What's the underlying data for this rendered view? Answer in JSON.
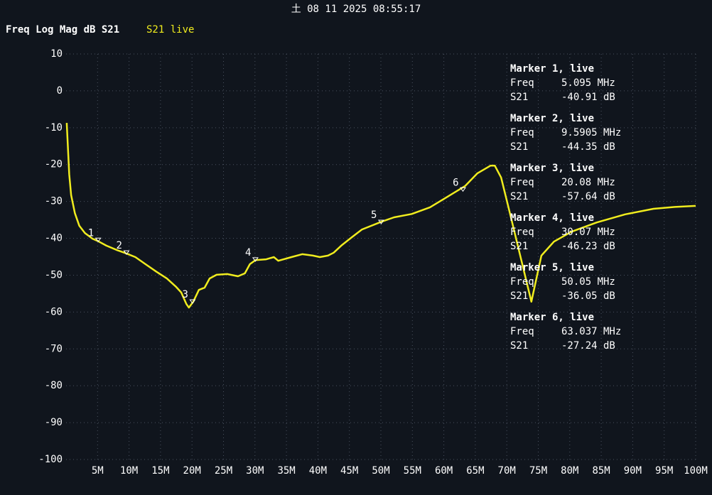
{
  "chart_data": {
    "type": "line",
    "timestamp": "土 08 11 2025 08:55:17",
    "title": "Freq Log Mag dB S21",
    "x": [
      0.1,
      0.5,
      0.8,
      1.4,
      2.1,
      3.0,
      4.2,
      5.0,
      6.4,
      8.1,
      9.4,
      11.0,
      12.6,
      14.3,
      16.0,
      17.5,
      18.3,
      19.1,
      19.5,
      20.2,
      21.1,
      22.0,
      22.8,
      23.9,
      25.6,
      27.3,
      28.4,
      29.2,
      30.1,
      31.8,
      33.0,
      33.7,
      35.8,
      37.5,
      39.2,
      40.3,
      41.6,
      42.5,
      43.7,
      45.4,
      47.0,
      50.1,
      52.1,
      54.9,
      57.8,
      60.6,
      63.4,
      65.3,
      67.4,
      68.1,
      69.1,
      70.5,
      72.4,
      73.9,
      75.5,
      77.5,
      80.3,
      84.3,
      88.8,
      93.3,
      96.7,
      100.0
    ],
    "series": [
      {
        "name": "S21 live",
        "color": "#f0ec1e",
        "values": [
          -8.7,
          -22.6,
          -28.3,
          -33.2,
          -36.6,
          -38.6,
          -40.1,
          -40.7,
          -42.0,
          -43.2,
          -44.0,
          -45.1,
          -47.0,
          -49.0,
          -50.9,
          -53.2,
          -54.7,
          -57.8,
          -58.8,
          -57.2,
          -54.0,
          -53.4,
          -50.9,
          -49.9,
          -49.7,
          -50.3,
          -49.5,
          -47.0,
          -45.9,
          -45.7,
          -45.1,
          -46.1,
          -45.1,
          -44.3,
          -44.7,
          -45.1,
          -44.7,
          -43.9,
          -42.0,
          -39.7,
          -37.6,
          -35.5,
          -34.3,
          -33.4,
          -31.6,
          -28.7,
          -25.8,
          -22.4,
          -20.3,
          -20.3,
          -23.5,
          -33.2,
          -46.6,
          -57.2,
          -44.7,
          -40.9,
          -38.2,
          -35.7,
          -33.5,
          -32.0,
          -31.5,
          -31.2
        ]
      }
    ],
    "xlim": [
      0,
      100
    ],
    "xticks": [
      {
        "value": 5,
        "label": "5M"
      },
      {
        "value": 10,
        "label": "10M"
      },
      {
        "value": 15,
        "label": "15M"
      },
      {
        "value": 20,
        "label": "20M"
      },
      {
        "value": 25,
        "label": "25M"
      },
      {
        "value": 30,
        "label": "30M"
      },
      {
        "value": 35,
        "label": "35M"
      },
      {
        "value": 40,
        "label": "40M"
      },
      {
        "value": 45,
        "label": "45M"
      },
      {
        "value": 50,
        "label": "50M"
      },
      {
        "value": 55,
        "label": "55M"
      },
      {
        "value": 60,
        "label": "60M"
      },
      {
        "value": 65,
        "label": "65M"
      },
      {
        "value": 70,
        "label": "70M"
      },
      {
        "value": 75,
        "label": "75M"
      },
      {
        "value": 80,
        "label": "80M"
      },
      {
        "value": 85,
        "label": "85M"
      },
      {
        "value": 90,
        "label": "90M"
      },
      {
        "value": 95,
        "label": "95M"
      },
      {
        "value": 100,
        "label": "100M"
      }
    ],
    "ylim": [
      -100,
      10
    ],
    "yticks": [
      -100,
      -90,
      -80,
      -70,
      -60,
      -50,
      -40,
      -30,
      -20,
      -10,
      0,
      10
    ],
    "grid": true,
    "markers": [
      {
        "number": "1",
        "title": "Marker 1, live",
        "freq_label": "Freq",
        "freq": "5.095 MHz",
        "s21_label": "S21",
        "s21": "-40.91 dB",
        "x": 5.095,
        "y": -40.91
      },
      {
        "number": "2",
        "title": "Marker 2, live",
        "freq_label": "Freq",
        "freq": "9.5905 MHz",
        "s21_label": "S21",
        "s21": "-44.35 dB",
        "x": 9.5905,
        "y": -44.35
      },
      {
        "number": "3",
        "title": "Marker 3, live",
        "freq_label": "Freq",
        "freq": "20.08 MHz",
        "s21_label": "S21",
        "s21": "-57.64 dB",
        "x": 20.08,
        "y": -57.64
      },
      {
        "number": "4",
        "title": "Marker 4, live",
        "freq_label": "Freq",
        "freq": "30.07 MHz",
        "s21_label": "S21",
        "s21": "-46.23 dB",
        "x": 30.07,
        "y": -46.23
      },
      {
        "number": "5",
        "title": "Marker 5, live",
        "freq_label": "Freq",
        "freq": "50.05 MHz",
        "s21_label": "S21",
        "s21": "-36.05 dB",
        "x": 50.05,
        "y": -36.05
      },
      {
        "number": "6",
        "title": "Marker 6, live",
        "freq_label": "Freq",
        "freq": "63.037 MHz",
        "s21_label": "S21",
        "s21": "-27.24 dB",
        "x": 63.037,
        "y": -27.24
      }
    ]
  }
}
